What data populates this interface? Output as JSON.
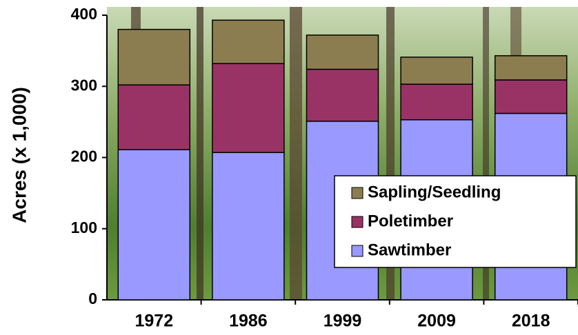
{
  "chart_data": {
    "type": "stacked_bar",
    "y_label": "Acres (x 1,000)",
    "categories": [
      "1972",
      "1986",
      "1999",
      "2009",
      "2018"
    ],
    "series": [
      {
        "name": "Sawtimber",
        "color": "#9999ff",
        "values": [
          211,
          207,
          251,
          253,
          262
        ]
      },
      {
        "name": "Poletimber",
        "color": "#993366",
        "values": [
          91,
          125,
          73,
          50,
          47
        ]
      },
      {
        "name": "Sapling/Seedling",
        "color": "#8c7d50",
        "values": [
          78,
          61,
          48,
          38,
          34
        ]
      }
    ],
    "ylim": [
      0,
      400
    ],
    "yticks": [
      0,
      100,
      200,
      300,
      400
    ],
    "legend": "lower right"
  }
}
